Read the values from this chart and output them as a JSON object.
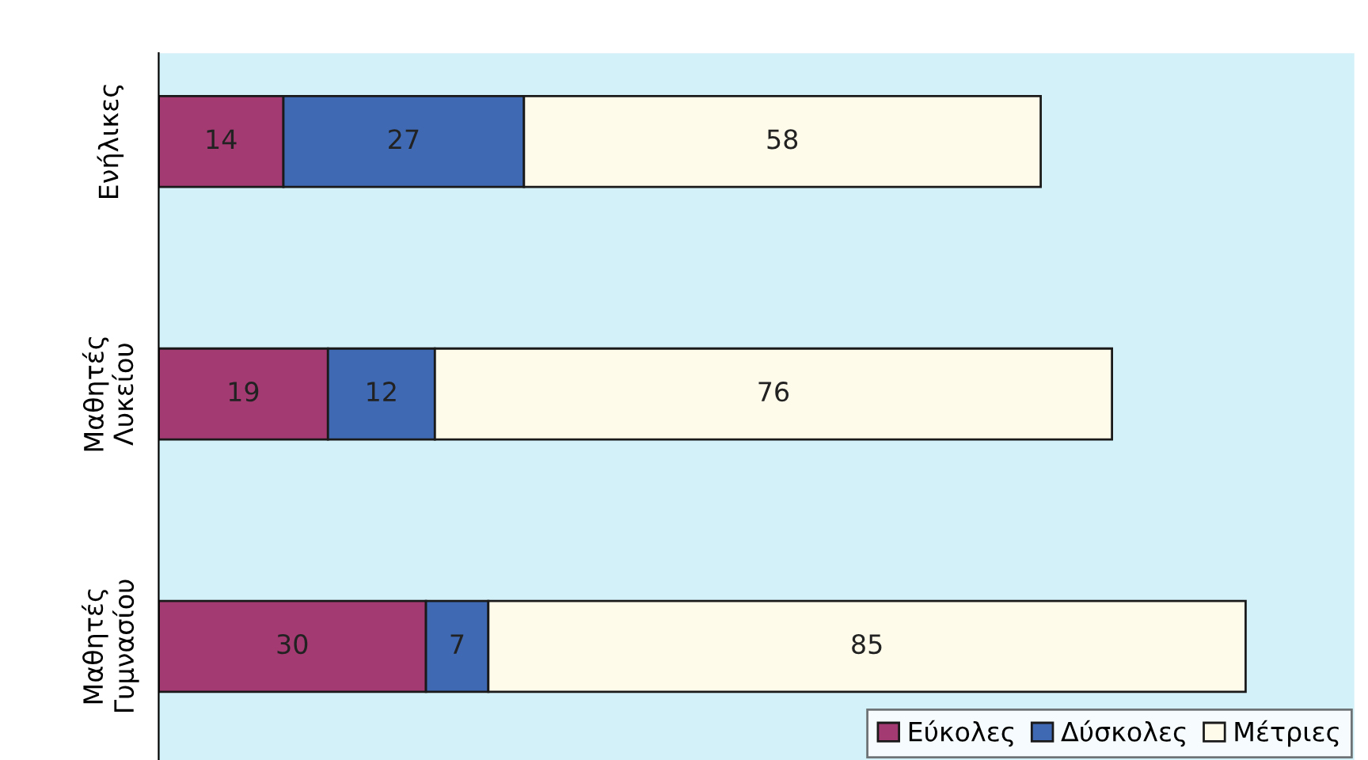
{
  "chart_data": {
    "type": "bar",
    "orientation": "horizontal",
    "stacked": true,
    "data_labels": true,
    "legend": "bottom right",
    "grid": false,
    "categories": [
      "Ενήλικες",
      "Μαθητές\nΛυκείου",
      "Μαθητές\nΓυμνασίου"
    ],
    "series": [
      {
        "name": "Εύκολες",
        "color": "#a33a72",
        "values": [
          14,
          19,
          30
        ]
      },
      {
        "name": "Δύσκολες",
        "color": "#3f69b3",
        "values": [
          27,
          12,
          7
        ]
      },
      {
        "name": "Μέτριες",
        "color": "#fffbea",
        "values": [
          58,
          76,
          85
        ]
      }
    ]
  }
}
